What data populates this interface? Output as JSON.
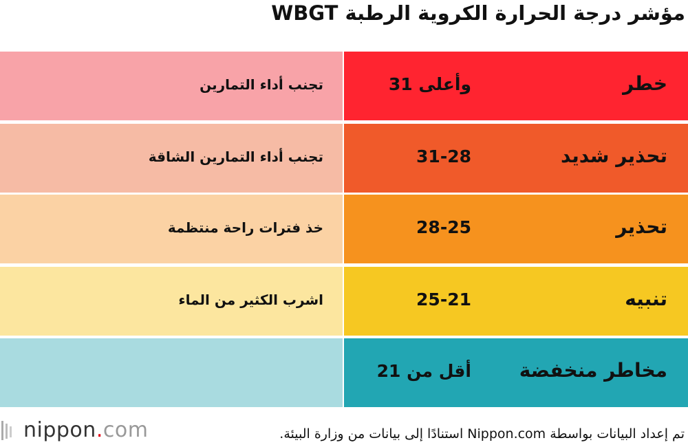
{
  "title": "مؤشر درجة الحرارة الكروية الرطبة WBGT",
  "table": {
    "rows": [
      {
        "level": "خطر",
        "range": "31 وأعلى",
        "advice": "تجنب أداء التمارين",
        "color": "#ff2430",
        "light": "#f8a3a8"
      },
      {
        "level": "تحذير شديد",
        "range": "31-28",
        "advice": "تجنب أداء التمارين الشاقة",
        "color": "#f05a2a",
        "light": "#f6bba5"
      },
      {
        "level": "تحذير",
        "range": "28-25",
        "advice": "خذ فترات راحة منتظمة",
        "color": "#f6921e",
        "light": "#fbd2a4"
      },
      {
        "level": "تنبيه",
        "range": "25-21",
        "advice": "اشرب الكثير من الماء",
        "color": "#f6c822",
        "light": "#fce69f"
      },
      {
        "level": "مخاطر منخفضة",
        "range": "أقل من 21",
        "color": "#22a6b3",
        "light": "#a9dbe0"
      }
    ]
  },
  "footer": {
    "logo": {
      "name": "nippon",
      "dot": ".",
      "domain": "com"
    },
    "source": "تم إعداد البيانات بواسطة Nippon.com استنادًا إلى بيانات من وزارة البيئة."
  }
}
